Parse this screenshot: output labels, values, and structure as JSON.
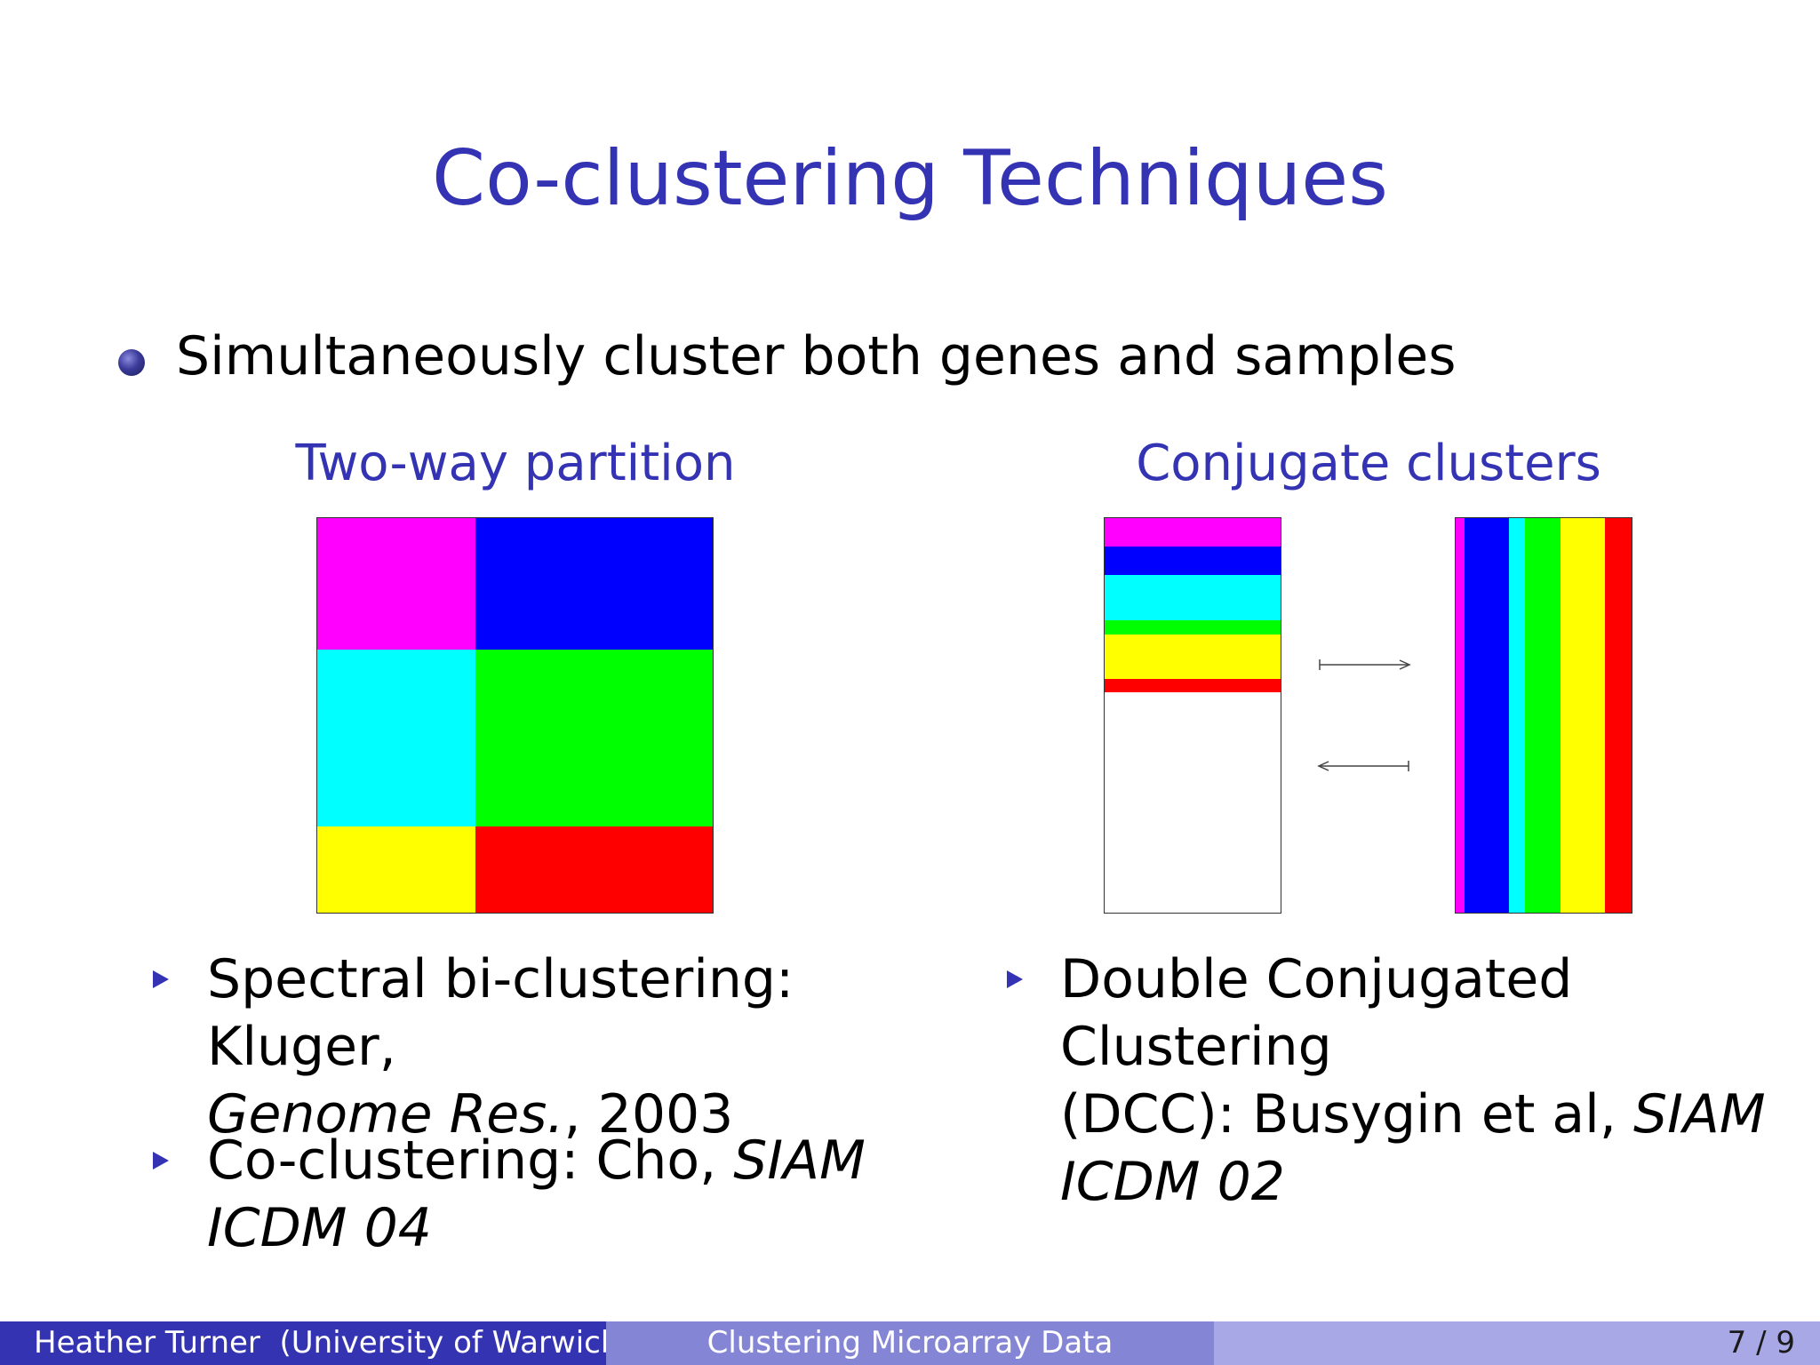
{
  "slide": {
    "title": "Co-clustering Techniques",
    "main_bullet": "Simultaneously cluster both genes and samples"
  },
  "left_panel": {
    "heading": "Two-way partition",
    "colors": {
      "magenta": "#ff00ff",
      "blue": "#0000ff",
      "cyan": "#00ffff",
      "green": "#00ff00",
      "yellow": "#ffff00",
      "red": "#ff0000"
    },
    "items": [
      {
        "text": "Spectral bi-clustering: Kluger,",
        "italic": "Genome Res.",
        "tail": ", 2003"
      },
      {
        "text": "Co-clustering: Cho, ",
        "italic": "SIAM",
        "italic2": "ICDM 04"
      }
    ]
  },
  "right_panel": {
    "heading": "Conjugate clusters",
    "arrows": [
      "maps-to-arrow-right",
      "maps-to-arrow-left"
    ],
    "items": [
      {
        "line1": "Double Conjugated Clustering",
        "line2": "(DCC): Busygin et al, ",
        "italic": "SIAM",
        "italic2": "ICDM 02"
      }
    ]
  },
  "footer": {
    "author": "Heather Turner  (University of Warwick)",
    "talk_title": "Clustering Microarray Data",
    "page": "7 / 9",
    "colors": {
      "left": "#3434b3",
      "middle": "#8585d6",
      "right": "#a8a8e6"
    }
  }
}
